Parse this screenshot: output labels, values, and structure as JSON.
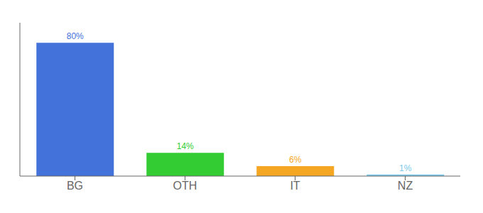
{
  "chart_data": {
    "type": "bar",
    "categories": [
      "BG",
      "OTH",
      "IT",
      "NZ"
    ],
    "values": [
      80,
      14,
      6,
      1
    ],
    "value_labels": [
      "80%",
      "14%",
      "6%",
      "1%"
    ],
    "data_labels": true,
    "colors": [
      "#4472db",
      "#33cc33",
      "#f5a623",
      "#7bc8e8"
    ],
    "ylim": [
      0,
      92
    ],
    "tick_labels": "x",
    "grid": false
  }
}
